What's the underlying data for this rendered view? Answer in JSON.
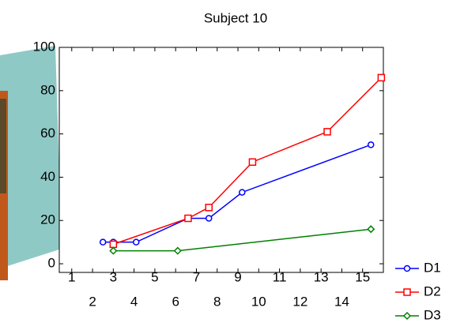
{
  "chart_data": {
    "type": "line",
    "title": "Subject 10",
    "xlim": [
      0.4,
      16
    ],
    "xticks": [
      1,
      2,
      3,
      4,
      5,
      6,
      7,
      8,
      9,
      10,
      11,
      12,
      13,
      14,
      15
    ],
    "ylim": [
      -4,
      100
    ],
    "yticks": [
      0,
      20,
      40,
      60,
      80,
      100
    ],
    "series": [
      {
        "name": "D1",
        "color": "#0000ff",
        "marker": "circle",
        "x": [
          2.5,
          3.0,
          4.1,
          6.6,
          7.6,
          9.2,
          15.4
        ],
        "values": [
          10,
          10,
          10,
          21,
          21,
          33,
          55
        ]
      },
      {
        "name": "D2",
        "color": "#ff0000",
        "marker": "square",
        "x": [
          3.0,
          6.6,
          7.6,
          9.7,
          13.3,
          15.9
        ],
        "values": [
          9,
          21,
          26,
          47,
          61,
          86
        ]
      },
      {
        "name": "D3",
        "color": "#008000",
        "marker": "diamond",
        "x": [
          3.0,
          6.1,
          15.4
        ],
        "values": [
          6,
          6,
          16
        ]
      }
    ]
  }
}
